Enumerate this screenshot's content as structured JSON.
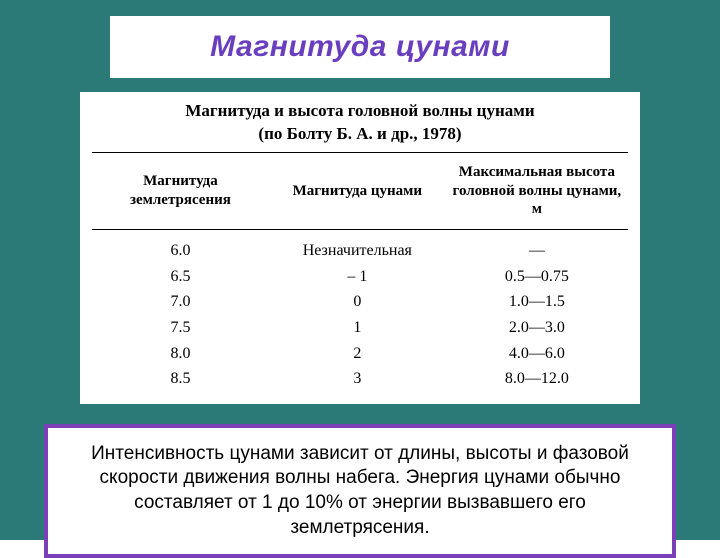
{
  "colors": {
    "page_bg": "#2b7a78",
    "title_bg": "#ffffff",
    "title_text": "#6a3fbf",
    "table_bg": "#ffffff",
    "table_text": "#000000",
    "caption_bg": "#ffffff",
    "caption_border": "#7b3fb8",
    "caption_border_width": "4px",
    "border_line": "#000000"
  },
  "title": "Магнитуда цунами",
  "table": {
    "caption_line1": "Магнитуда и высота головной волны цунами",
    "caption_line2": "(по Болту Б. А. и др., 1978)",
    "columns": [
      "Магнитуда землетрясения",
      "Магнитуда цунами",
      "Максимальная высота головной волны цунами, м"
    ],
    "col_widths": [
      "33%",
      "33%",
      "34%"
    ],
    "rows": [
      [
        "6.0",
        "Незначительная",
        "—"
      ],
      [
        "6.5",
        "– 1",
        "0.5—0.75"
      ],
      [
        "7.0",
        "0",
        "1.0—1.5"
      ],
      [
        "7.5",
        "1",
        "2.0—3.0"
      ],
      [
        "8.0",
        "2",
        "4.0—6.0"
      ],
      [
        "8.5",
        "3",
        "8.0—12.0"
      ]
    ]
  },
  "caption": "Интенсивность цунами зависит от длины, высоты и фазовой скорости движения волны набега. Энергия цунами обычно составляет от 1 до 10% от энергии вызвавшего его землетрясения."
}
